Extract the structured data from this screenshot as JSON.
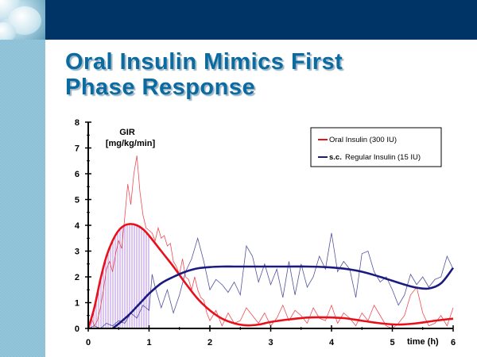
{
  "slide": {
    "title_lines": [
      "Oral Insulin Mimics First",
      "Phase Response"
    ],
    "colors": {
      "top_bar": "#003366",
      "side_panel": "#8cc0d6",
      "title": "#0b6aa0"
    }
  },
  "chart_data": {
    "type": "line",
    "title": "Oral Insulin Mimics First Phase Response",
    "ylabel": "GIR [mg/kg/min]",
    "ylabel_lines": [
      "GIR",
      "[mg/kg/min]"
    ],
    "xlabel": "time (h)",
    "xlim": [
      0,
      6
    ],
    "ylim": [
      0,
      8
    ],
    "xticks": [
      0,
      1,
      2,
      3,
      4,
      5,
      6
    ],
    "yticks": [
      0,
      1,
      2,
      3,
      4,
      5,
      6,
      7,
      8
    ],
    "grid": false,
    "legend_position": "top-right",
    "shaded_region": {
      "series": "Oral Insulin (300 IU)",
      "x_from": 0,
      "x_to": 1,
      "color": "#c9a8e8"
    },
    "series": [
      {
        "name": "Oral Insulin (300 IU)",
        "legend_label": "Oral Insulin (300 IU)",
        "color": "#e8101a",
        "fitted": {
          "x": [
            0,
            0.1,
            0.2,
            0.3,
            0.4,
            0.5,
            0.6,
            0.7,
            0.8,
            0.9,
            1.0,
            1.2,
            1.4,
            1.6,
            1.8,
            2.0,
            2.2,
            2.4,
            2.6,
            2.8,
            3.0,
            3.3,
            3.6,
            3.9,
            4.2,
            4.5,
            4.8,
            5.1,
            5.4,
            5.7,
            6.0
          ],
          "y": [
            0,
            0.8,
            1.9,
            2.8,
            3.4,
            3.8,
            4.0,
            4.05,
            4.0,
            3.85,
            3.6,
            3.0,
            2.4,
            1.75,
            1.15,
            0.7,
            0.38,
            0.2,
            0.12,
            0.15,
            0.25,
            0.35,
            0.42,
            0.43,
            0.4,
            0.3,
            0.2,
            0.15,
            0.2,
            0.3,
            0.38
          ]
        },
        "raw": {
          "x": [
            0,
            0.05,
            0.1,
            0.15,
            0.2,
            0.25,
            0.3,
            0.35,
            0.4,
            0.45,
            0.5,
            0.55,
            0.6,
            0.65,
            0.7,
            0.75,
            0.8,
            0.85,
            0.9,
            0.95,
            1.0,
            1.05,
            1.1,
            1.15,
            1.2,
            1.25,
            1.3,
            1.35,
            1.4,
            1.45,
            1.5,
            1.55,
            1.6,
            1.65,
            1.7,
            1.75,
            1.8,
            1.85,
            1.9,
            1.95,
            2.0,
            2.1,
            2.2,
            2.3,
            2.4,
            2.5,
            2.6,
            2.7,
            2.8,
            2.9,
            3.0,
            3.1,
            3.2,
            3.3,
            3.4,
            3.5,
            3.6,
            3.7,
            3.8,
            3.9,
            4.0,
            4.1,
            4.2,
            4.3,
            4.4,
            4.5,
            4.6,
            4.7,
            4.8,
            4.9,
            5.0,
            5.1,
            5.2,
            5.3,
            5.4,
            5.5,
            5.6,
            5.7,
            5.8,
            5.9,
            6.0
          ],
          "y": [
            0,
            0.4,
            0.1,
            0.3,
            0.8,
            1.5,
            2.3,
            2.6,
            2.2,
            2.9,
            3.4,
            3.1,
            4.3,
            5.6,
            4.8,
            6.0,
            6.7,
            5.3,
            4.4,
            3.9,
            3.8,
            3.7,
            3.4,
            3.9,
            3.5,
            3.6,
            3.2,
            3.3,
            2.6,
            2.4,
            2.1,
            2.7,
            2.0,
            1.9,
            1.5,
            2.0,
            1.5,
            1.2,
            1.1,
            0.6,
            0.3,
            0.7,
            0.1,
            0.6,
            0.2,
            0.3,
            0.8,
            0.5,
            0.2,
            0.6,
            0.1,
            0.4,
            0.9,
            0.3,
            0.7,
            0.5,
            0.2,
            0.8,
            0.4,
            0.3,
            0.9,
            0.2,
            0.6,
            0.4,
            0.1,
            0.6,
            0.3,
            0.9,
            0.5,
            0.1,
            0.0,
            0.2,
            0.5,
            1.3,
            1.6,
            0.6,
            0.1,
            0.2,
            0.5,
            0.1,
            0.8
          ]
        }
      },
      {
        "name": "s.c. Regular Insulin (15 IU)",
        "legend_label_prefix": "s.c.",
        "legend_label": "Regular Insulin (15 IU)",
        "color": "#1a1a80",
        "fitted": {
          "x": [
            0.4,
            0.5,
            0.6,
            0.7,
            0.8,
            0.9,
            1.0,
            1.2,
            1.4,
            1.6,
            1.8,
            2.0,
            2.2,
            2.4,
            2.6,
            2.8,
            3.0,
            3.3,
            3.6,
            3.9,
            4.2,
            4.5,
            4.8,
            5.0,
            5.2,
            5.4,
            5.6,
            5.8,
            6.0
          ],
          "y": [
            0,
            0.18,
            0.38,
            0.6,
            0.85,
            1.1,
            1.35,
            1.75,
            2.0,
            2.2,
            2.33,
            2.38,
            2.4,
            2.4,
            2.4,
            2.4,
            2.4,
            2.4,
            2.4,
            2.38,
            2.32,
            2.2,
            2.0,
            1.85,
            1.7,
            1.58,
            1.55,
            1.75,
            2.35
          ]
        },
        "raw": {
          "x": [
            0,
            0.1,
            0.2,
            0.3,
            0.4,
            0.5,
            0.6,
            0.7,
            0.8,
            0.9,
            1.0,
            1.05,
            1.1,
            1.2,
            1.3,
            1.4,
            1.5,
            1.6,
            1.7,
            1.8,
            1.9,
            2.0,
            2.1,
            2.2,
            2.3,
            2.4,
            2.5,
            2.6,
            2.7,
            2.8,
            2.9,
            3.0,
            3.1,
            3.2,
            3.3,
            3.4,
            3.5,
            3.6,
            3.7,
            3.8,
            3.9,
            4.0,
            4.1,
            4.2,
            4.3,
            4.4,
            4.5,
            4.6,
            4.7,
            4.8,
            4.9,
            5.0,
            5.1,
            5.2,
            5.3,
            5.4,
            5.5,
            5.6,
            5.7,
            5.8,
            5.9,
            6.0
          ],
          "y": [
            0,
            0.1,
            0.0,
            0.2,
            0.1,
            0.3,
            0.2,
            0.6,
            0.4,
            0.9,
            0.7,
            2.1,
            1.6,
            0.8,
            1.5,
            0.6,
            1.3,
            2.2,
            2.7,
            3.5,
            2.6,
            1.5,
            1.9,
            1.7,
            1.4,
            1.8,
            1.3,
            3.2,
            2.8,
            1.8,
            2.5,
            1.7,
            2.3,
            1.2,
            2.6,
            1.3,
            2.5,
            1.6,
            2.0,
            2.8,
            2.3,
            3.7,
            2.2,
            2.6,
            2.3,
            1.2,
            2.9,
            3.0,
            2.2,
            1.8,
            2.0,
            1.5,
            0.9,
            1.3,
            2.1,
            1.7,
            2.0,
            1.6,
            1.9,
            2.0,
            2.8,
            2.3
          ]
        }
      }
    ]
  }
}
